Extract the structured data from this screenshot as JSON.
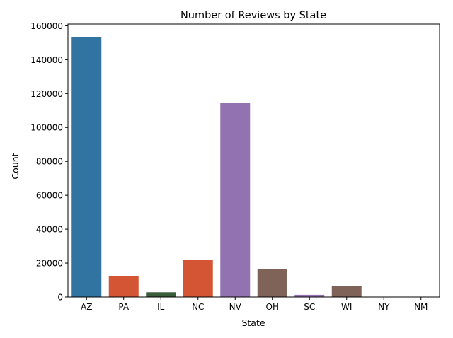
{
  "chart_data": {
    "type": "bar",
    "title": "Number of Reviews by State",
    "xlabel": "State",
    "ylabel": "Count",
    "categories": [
      "AZ",
      "PA",
      "IL",
      "NC",
      "NV",
      "OH",
      "SC",
      "WI",
      "NY",
      "NM"
    ],
    "values": [
      153100,
      12500,
      2800,
      21700,
      114600,
      16300,
      1300,
      6600,
      20,
      10
    ],
    "colors": [
      "#3274a1",
      "#d45534",
      "#3a5d3a",
      "#d45534",
      "#9372b2",
      "#7f6359",
      "#9372b2",
      "#7f6359",
      "#3274a1",
      "#3274a1"
    ],
    "ylim": [
      0,
      161000
    ],
    "yticks": [
      0,
      20000,
      40000,
      60000,
      80000,
      100000,
      120000,
      140000,
      160000
    ],
    "grid": false,
    "legend": false
  }
}
